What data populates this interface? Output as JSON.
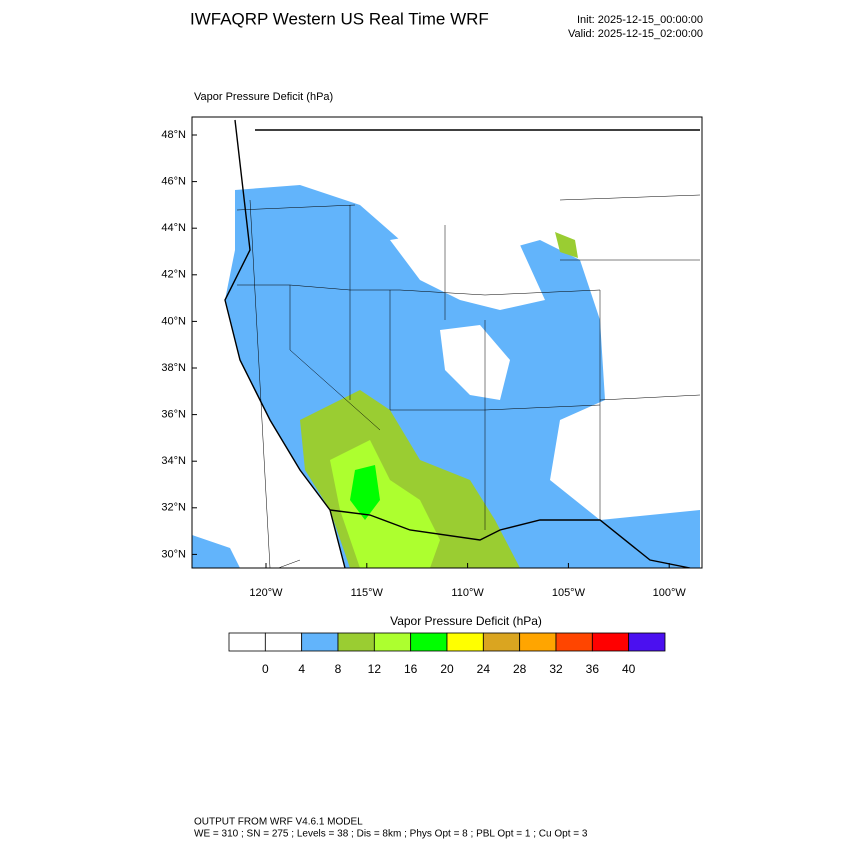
{
  "header": {
    "title": "IWFAQRP Western US Real Time WRF",
    "init": "Init: 2025-12-15_00:00:00",
    "valid": "Valid: 2025-12-15_02:00:00"
  },
  "map": {
    "title": "Vapor Pressure Deficit   (hPa)",
    "lat_ticks": [
      "48°N",
      "46°N",
      "44°N",
      "42°N",
      "40°N",
      "38°N",
      "36°N",
      "34°N",
      "32°N",
      "30°N"
    ],
    "lon_ticks": [
      "120°W",
      "115°W",
      "110°W",
      "105°W",
      "100°W"
    ]
  },
  "colorbar": {
    "title": "Vapor Pressure Deficit  (hPa)",
    "colors": [
      "#ffffff",
      "#ffffff",
      "#62b4fb",
      "#9acd32",
      "#adff2f",
      "#00ff00",
      "#ffff00",
      "#daa520",
      "#ffa500",
      "#ff4500",
      "#ff0000",
      "#4b10f0"
    ],
    "labels": [
      "0",
      "4",
      "8",
      "12",
      "16",
      "20",
      "24",
      "28",
      "32",
      "36",
      "40"
    ]
  },
  "footer": {
    "line1": "OUTPUT FROM WRF V4.6.1 MODEL",
    "line2": "WE = 310 ; SN = 275 ; Levels = 38 ; Dis = 8km ; Phys Opt = 8 ; PBL Opt = 1 ; Cu Opt = 3"
  }
}
